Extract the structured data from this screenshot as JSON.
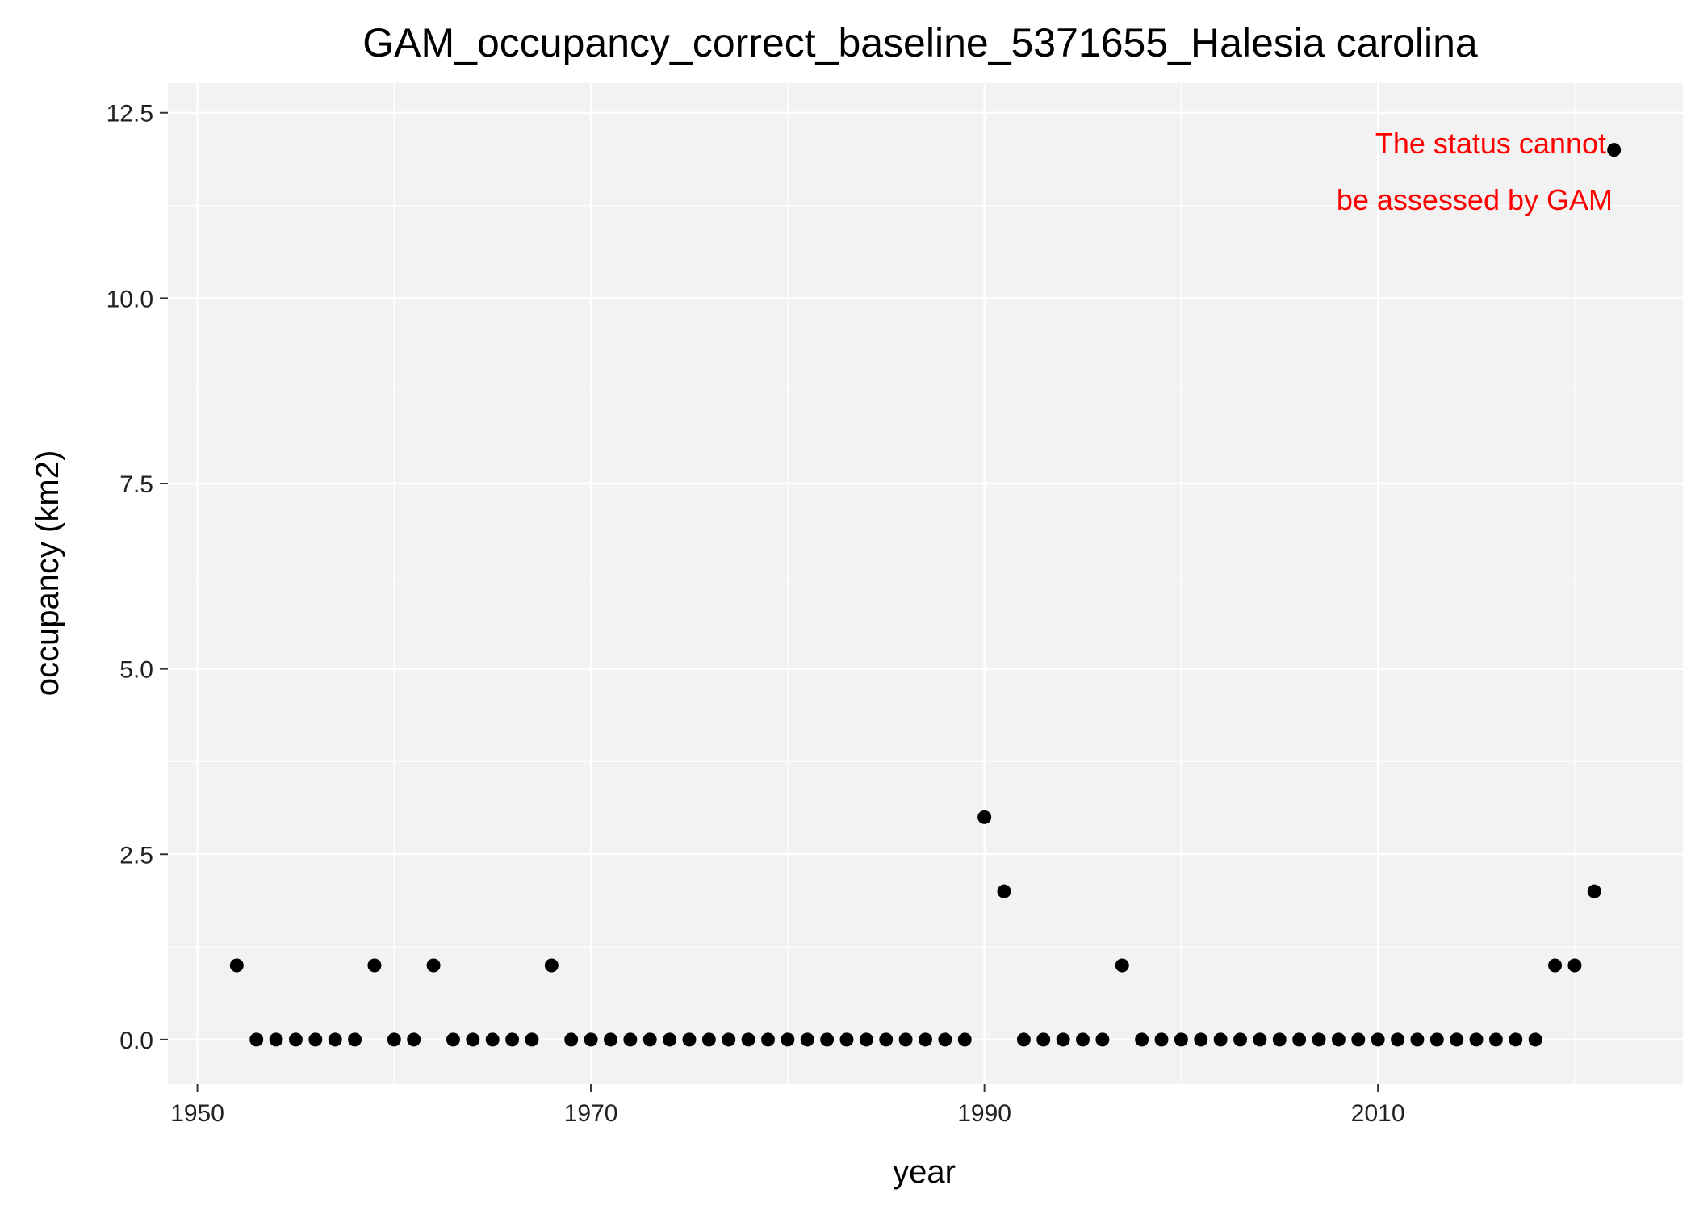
{
  "chart_data": {
    "type": "scatter",
    "title": "GAM_occupancy_correct_baseline_5371655_Halesia carolina",
    "xlabel": "year",
    "ylabel": "occupancy (km2)",
    "xlim": [
      1948.5,
      2025.5
    ],
    "ylim": [
      -0.6,
      12.9
    ],
    "xticks": [
      1950,
      1970,
      1990,
      2010
    ],
    "yticks": [
      0.0,
      2.5,
      5.0,
      7.5,
      10.0,
      12.5
    ],
    "ytick_labels": [
      "0.0",
      "2.5",
      "5.0",
      "7.5",
      "10.0",
      "12.5"
    ],
    "grid": true,
    "panel_color": "#f2f2f2",
    "point_color": "#000000",
    "annotation": {
      "lines": [
        "The status cannot",
        "be assessed by GAM"
      ],
      "color": "#ff0000",
      "position": "top-right"
    },
    "x": [
      1952,
      1953,
      1954,
      1955,
      1956,
      1957,
      1958,
      1959,
      1960,
      1961,
      1962,
      1963,
      1964,
      1965,
      1966,
      1967,
      1968,
      1969,
      1970,
      1971,
      1972,
      1973,
      1974,
      1975,
      1976,
      1977,
      1978,
      1979,
      1980,
      1981,
      1982,
      1983,
      1984,
      1985,
      1986,
      1987,
      1988,
      1989,
      1990,
      1991,
      1992,
      1993,
      1994,
      1995,
      1996,
      1997,
      1998,
      1999,
      2000,
      2001,
      2002,
      2003,
      2004,
      2005,
      2006,
      2007,
      2008,
      2009,
      2010,
      2011,
      2012,
      2013,
      2014,
      2015,
      2016,
      2017,
      2018,
      2019,
      2020,
      2021,
      2022
    ],
    "y": [
      1,
      0,
      0,
      0,
      0,
      0,
      0,
      1,
      0,
      0,
      1,
      0,
      0,
      0,
      0,
      0,
      1,
      0,
      0,
      0,
      0,
      0,
      0,
      0,
      0,
      0,
      0,
      0,
      0,
      0,
      0,
      0,
      0,
      0,
      0,
      0,
      0,
      0,
      3,
      2,
      0,
      0,
      0,
      0,
      0,
      1,
      0,
      0,
      0,
      0,
      0,
      0,
      0,
      0,
      0,
      0,
      0,
      0,
      0,
      0,
      0,
      0,
      0,
      0,
      0,
      0,
      0,
      1,
      1,
      2,
      12
    ]
  }
}
